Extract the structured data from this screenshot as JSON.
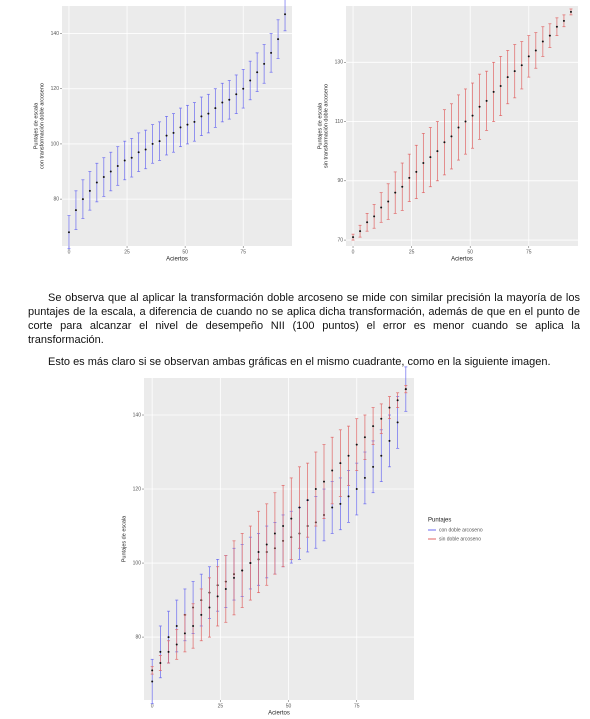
{
  "chart_data": [
    {
      "type": "errorbar",
      "x_label": "Aciertos",
      "y_label": [
        "Puntajes de escala",
        "con transformación doble arcoseno"
      ],
      "x": [
        0,
        3,
        6,
        9,
        12,
        15,
        18,
        21,
        24,
        27,
        30,
        33,
        36,
        39,
        42,
        45,
        48,
        51,
        54,
        57,
        60,
        63,
        66,
        69,
        72,
        75,
        78,
        81,
        84,
        87,
        90,
        93
      ],
      "xlim": [
        -3,
        96
      ],
      "xticks": [
        0,
        25,
        50,
        75
      ],
      "ylim": [
        63,
        150
      ],
      "yticks": [
        80,
        100,
        120,
        140
      ],
      "grid": true,
      "series": [
        {
          "color": "#6b6bf0",
          "values": [
            68,
            76,
            80,
            83,
            86,
            88,
            90,
            92,
            94,
            95,
            97,
            98,
            100,
            101,
            103,
            104,
            106,
            107,
            108,
            110,
            111,
            113,
            115,
            116,
            118,
            120,
            123,
            126,
            129,
            133,
            138,
            147
          ],
          "errors": [
            6,
            7,
            7,
            7,
            7,
            7,
            7,
            7,
            7,
            7,
            7,
            7,
            7,
            7,
            7,
            7,
            7,
            7,
            7,
            7,
            7,
            7,
            7,
            7,
            7,
            7,
            7,
            7,
            7,
            7,
            7,
            6
          ]
        }
      ]
    },
    {
      "type": "errorbar",
      "x_label": "Aciertos",
      "y_label": [
        "Puntajes de escala",
        "sin transformación doble arcoseno"
      ],
      "x": [
        0,
        3,
        6,
        9,
        12,
        15,
        18,
        21,
        24,
        27,
        30,
        33,
        36,
        39,
        42,
        45,
        48,
        51,
        54,
        57,
        60,
        63,
        66,
        69,
        72,
        75,
        78,
        81,
        84,
        87,
        90,
        93
      ],
      "xlim": [
        -3,
        96
      ],
      "xticks": [
        0,
        25,
        50,
        75
      ],
      "ylim": [
        68,
        149
      ],
      "yticks": [
        70,
        90,
        110,
        130
      ],
      "grid": true,
      "series": [
        {
          "color": "#e06666",
          "values": [
            71,
            73,
            76,
            78,
            81,
            83,
            86,
            88,
            91,
            93,
            96,
            98,
            100,
            103,
            105,
            108,
            110,
            112,
            115,
            117,
            120,
            122,
            125,
            127,
            129,
            132,
            134,
            137,
            139,
            142,
            144,
            147
          ],
          "errors": [
            1,
            2,
            3,
            4,
            5,
            6,
            7,
            8,
            8,
            9,
            10,
            10,
            10,
            11,
            11,
            11,
            11,
            11,
            11,
            10,
            10,
            10,
            9,
            9,
            8,
            7,
            6,
            5,
            4,
            3,
            2,
            1
          ]
        }
      ]
    },
    {
      "type": "errorbar",
      "x_label": "Aciertos",
      "y_label": [
        "Puntajes de escala"
      ],
      "legend_title": "Puntajes",
      "x": [
        0,
        3,
        6,
        9,
        12,
        15,
        18,
        21,
        24,
        27,
        30,
        33,
        36,
        39,
        42,
        45,
        48,
        51,
        54,
        57,
        60,
        63,
        66,
        69,
        72,
        75,
        78,
        81,
        84,
        87,
        90,
        93
      ],
      "xlim": [
        -3,
        96
      ],
      "xticks": [
        0,
        25,
        50,
        75
      ],
      "ylim": [
        63,
        150
      ],
      "yticks": [
        80,
        100,
        120,
        140
      ],
      "grid": true,
      "series": [
        {
          "name": "con doble arcoseno",
          "color": "#6b6bf0",
          "values": [
            68,
            76,
            80,
            83,
            86,
            88,
            90,
            92,
            94,
            95,
            97,
            98,
            100,
            101,
            103,
            104,
            106,
            107,
            108,
            110,
            111,
            113,
            115,
            116,
            118,
            120,
            123,
            126,
            129,
            133,
            138,
            147
          ],
          "errors": [
            6,
            7,
            7,
            7,
            7,
            7,
            7,
            7,
            7,
            7,
            7,
            7,
            7,
            7,
            7,
            7,
            7,
            7,
            7,
            7,
            7,
            7,
            7,
            7,
            7,
            7,
            7,
            7,
            7,
            7,
            7,
            6
          ]
        },
        {
          "name": "sin doble arcoseno",
          "color": "#e06666",
          "values": [
            71,
            73,
            76,
            78,
            81,
            83,
            86,
            88,
            91,
            93,
            96,
            98,
            100,
            103,
            105,
            108,
            110,
            112,
            115,
            117,
            120,
            122,
            125,
            127,
            129,
            132,
            134,
            137,
            139,
            142,
            144,
            147
          ],
          "errors": [
            1,
            2,
            3,
            4,
            5,
            6,
            7,
            8,
            8,
            9,
            10,
            10,
            10,
            11,
            11,
            11,
            11,
            11,
            11,
            10,
            10,
            10,
            9,
            9,
            8,
            7,
            6,
            5,
            4,
            3,
            2,
            1
          ]
        }
      ]
    }
  ],
  "paragraphs": [
    "Se observa que al aplicar la transformación doble arcoseno se mide con similar precisión la mayoría de los puntajes de la escala, a diferencia de cuando no se aplica dicha transformación, además de que en el punto de corte para alcanzar el nivel de desempeño NII (100 puntos) el error es menor cuando se aplica la transformación.",
    "Esto es más claro si se observan ambas gráficas en el mismo cuadrante, como en la siguiente imagen."
  ]
}
